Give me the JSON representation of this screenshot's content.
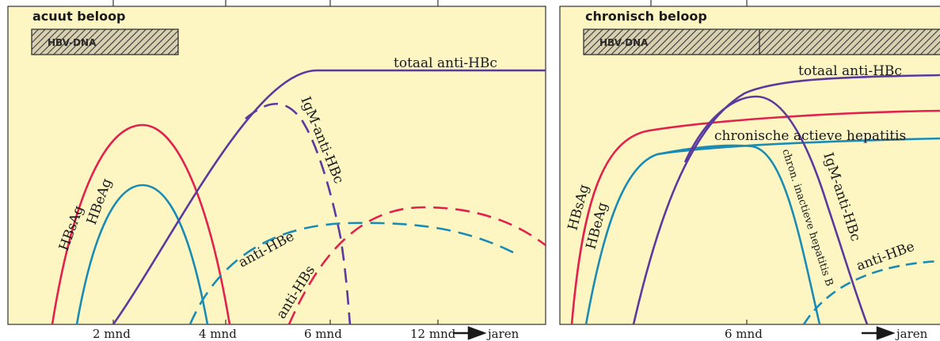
{
  "acute": {
    "title": "acuut beloop",
    "dna_label": "HBV-DNA",
    "labels": {
      "total_anti_hbc": "totaal anti-HBc",
      "igm_anti_hbc": "IgM-anti-HBc",
      "hbsag": "HBsAg",
      "hbeag": "HBeAg",
      "anti_hbe": "anti-HBe",
      "anti_hbs": "anti-HBs"
    },
    "ticks": [
      "2 mnd",
      "4 mnd",
      "6 mnd",
      "12 mnd",
      "jaren"
    ]
  },
  "chronic": {
    "title": "chronisch beloop",
    "dna_label": "HBV-DNA",
    "labels": {
      "total_anti_hbc": "totaal anti-HBc",
      "active_hepatitis": "chronische actieve hepatitis",
      "hbsag": "HBsAg",
      "hbeag": "HBeAg",
      "inactive_hepatitis": "chron. inactieve hepatitis B",
      "igm_anti_hbc": "IgM-anti-HBc",
      "anti_hbe": "anti-HBe"
    },
    "ticks": [
      "6 mnd",
      "jaren"
    ]
  },
  "colors": {
    "background": "#fdf6c3",
    "red": "#e0224d",
    "blue": "#1a8cb4",
    "purple": "#5a3a9c"
  }
}
